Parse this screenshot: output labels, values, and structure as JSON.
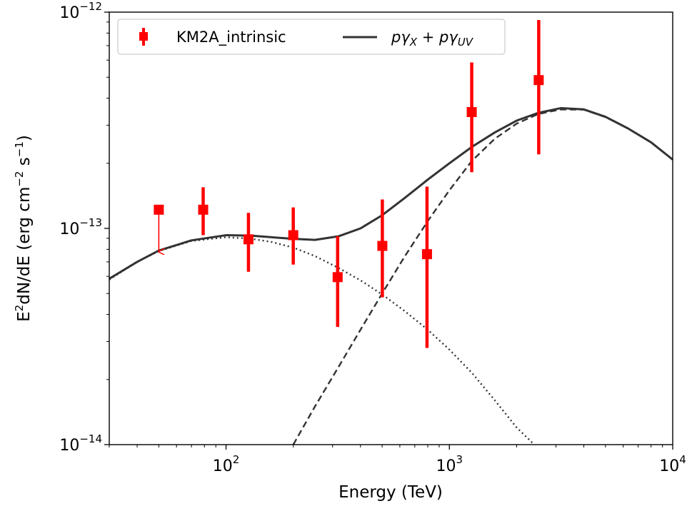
{
  "chart_data": {
    "type": "scatter",
    "title": "",
    "xlabel": "Energy (TeV)",
    "ylabel": "E2dN/dE (erg cm−2 s−1)",
    "xscale": "log",
    "yscale": "log",
    "xlim": [
      30,
      10000
    ],
    "ylim": [
      1e-14,
      1e-12
    ],
    "x_ticks": [
      {
        "value": 100,
        "base": "10",
        "exp": "2"
      },
      {
        "value": 1000,
        "base": "10",
        "exp": "3"
      },
      {
        "value": 10000,
        "base": "10",
        "exp": "4"
      }
    ],
    "y_ticks": [
      {
        "value": 1e-14,
        "base": "10",
        "exp": "−14"
      },
      {
        "value": 1e-13,
        "base": "10",
        "exp": "−13"
      },
      {
        "value": 1e-12,
        "base": "10",
        "exp": "−12"
      }
    ],
    "legend_position": "top-left",
    "series": [
      {
        "name": "KM2A_intrinsic",
        "kind": "errorbar",
        "color": "#ff0000",
        "points": [
          {
            "x": 50,
            "y": 1.22e-13,
            "upper_limit": true,
            "arrow_to": 7.8e-14
          },
          {
            "x": 79,
            "y": 1.22e-13,
            "y_low": 9.3e-14,
            "y_high": 1.55e-13
          },
          {
            "x": 126,
            "y": 8.9e-14,
            "y_low": 6.3e-14,
            "y_high": 1.18e-13
          },
          {
            "x": 200,
            "y": 9.3e-14,
            "y_low": 6.8e-14,
            "y_high": 1.25e-13
          },
          {
            "x": 316,
            "y": 5.95e-14,
            "y_low": 3.5e-14,
            "y_high": 9.2e-14
          },
          {
            "x": 501,
            "y": 8.3e-14,
            "y_low": 4.8e-14,
            "y_high": 1.36e-13
          },
          {
            "x": 794,
            "y": 7.6e-14,
            "y_low": 2.8e-14,
            "y_high": 1.56e-13
          },
          {
            "x": 1259,
            "y": 3.45e-13,
            "y_low": 1.82e-13,
            "y_high": 5.85e-13
          },
          {
            "x": 2512,
            "y": 4.85e-13,
            "y_low": 2.2e-13,
            "y_high": 9.2e-13
          }
        ]
      },
      {
        "name": "pγX + pγUV",
        "legend_label": {
          "p1": "pγ",
          "s1": "X",
          "plus": " + ",
          "p2": "pγ",
          "s2": "UV"
        },
        "kind": "line",
        "style": "solid",
        "color": "#333333",
        "x": [
          30,
          40,
          50,
          70,
          100,
          130,
          160,
          200,
          250,
          320,
          400,
          500,
          630,
          800,
          1000,
          1260,
          1600,
          2000,
          2500,
          3160,
          4000,
          5000,
          6300,
          8000,
          10000
        ],
        "y": [
          5.85e-14,
          7e-14,
          7.9e-14,
          8.8e-14,
          9.3e-14,
          9.25e-14,
          9.1e-14,
          8.95e-14,
          8.85e-14,
          9.2e-14,
          1e-13,
          1.15e-13,
          1.38e-13,
          1.68e-13,
          2e-13,
          2.38e-13,
          2.78e-13,
          3.15e-13,
          3.42e-13,
          3.6e-13,
          3.55e-13,
          3.28e-13,
          2.9e-13,
          2.5e-13,
          2.08e-13
        ]
      },
      {
        "name": "component pγX",
        "kind": "line",
        "style": "dotted",
        "color": "#333333",
        "x": [
          30,
          40,
          50,
          70,
          100,
          130,
          160,
          200,
          250,
          320,
          400,
          500,
          630,
          800,
          1000,
          1260,
          1600,
          2000,
          2400
        ],
        "y": [
          5.8e-14,
          7e-14,
          7.85e-14,
          8.75e-14,
          9.1e-14,
          8.95e-14,
          8.65e-14,
          8.15e-14,
          7.45e-14,
          6.55e-14,
          5.75e-14,
          4.95e-14,
          4.15e-14,
          3.4e-14,
          2.75e-14,
          2.15e-14,
          1.6e-14,
          1.2e-14,
          1e-14
        ]
      },
      {
        "name": "component pγUV",
        "kind": "line",
        "style": "dashed",
        "color": "#333333",
        "x": [
          200,
          250,
          320,
          400,
          500,
          630,
          800,
          1000,
          1260,
          1600,
          2000,
          2500,
          3160,
          4000,
          5000,
          6300,
          8000,
          10000
        ],
        "y": [
          1e-14,
          1.5e-14,
          2.3e-14,
          3.4e-14,
          5e-14,
          7.4e-14,
          1.08e-13,
          1.5e-13,
          2.05e-13,
          2.6e-13,
          3.05e-13,
          3.38e-13,
          3.55e-13,
          3.54e-13,
          3.27e-13,
          2.9e-13,
          2.5e-13,
          2.08e-13
        ]
      }
    ]
  }
}
